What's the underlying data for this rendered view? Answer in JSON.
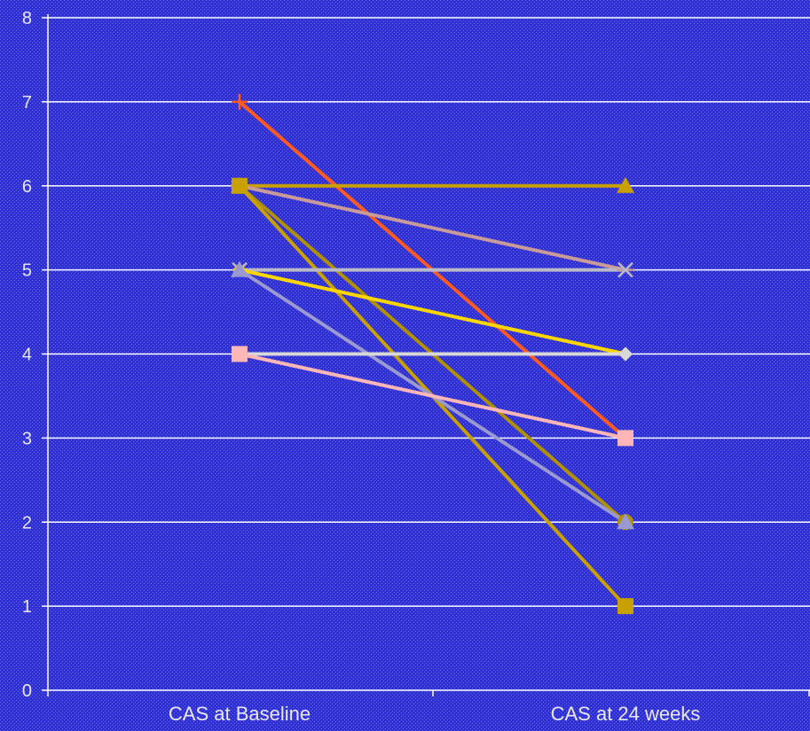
{
  "chart_data": {
    "type": "line",
    "title": "",
    "xlabel": "",
    "ylabel": "",
    "categories": [
      "CAS at Baseline",
      "CAS at 24 weeks"
    ],
    "ylim": [
      0,
      8
    ],
    "yticks": [
      0,
      1,
      2,
      3,
      4,
      5,
      6,
      7,
      8
    ],
    "grid": true,
    "background_color": "#2f2fd6",
    "series": [
      {
        "values": [
          7,
          3
        ],
        "color": "#ff5a1f",
        "marker": "plus"
      },
      {
        "values": [
          6,
          6
        ],
        "color": "#c8a000",
        "marker": "triangle"
      },
      {
        "values": [
          6,
          5
        ],
        "color": "#c99a9a",
        "marker": "star"
      },
      {
        "values": [
          6,
          2
        ],
        "color": "#b09000",
        "marker": "circle"
      },
      {
        "values": [
          6,
          1
        ],
        "color": "#c8a000",
        "marker": "square"
      },
      {
        "values": [
          5,
          5
        ],
        "color": "#b8b8c8",
        "marker": "x"
      },
      {
        "values": [
          5,
          4
        ],
        "color": "#ffd700",
        "marker": "diamond"
      },
      {
        "values": [
          5,
          2
        ],
        "color": "#9a9ad0",
        "marker": "triangle"
      },
      {
        "values": [
          4,
          4
        ],
        "color": "#d8d8d8",
        "marker": "diamond"
      },
      {
        "values": [
          4,
          3
        ],
        "color": "#ffb6b6",
        "marker": "square"
      }
    ]
  }
}
